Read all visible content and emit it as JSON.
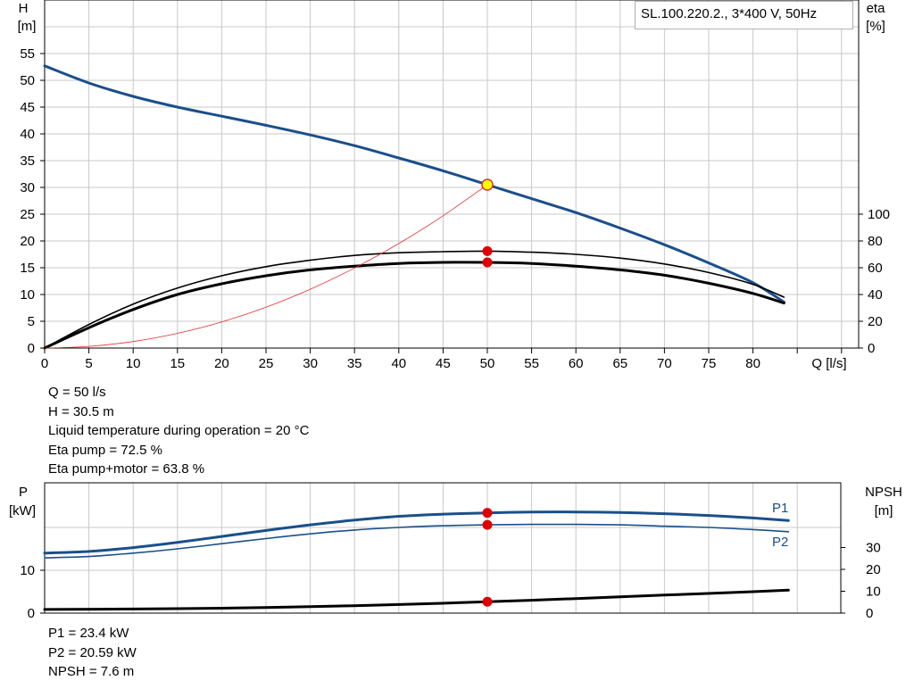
{
  "chart_data": [
    {
      "type": "line",
      "legend": "SL.100.220.2., 3*400 V, 50Hz",
      "xlabel": "Q [l/s]",
      "ylabel_top": "H",
      "ylabel_unit": "[m]",
      "y2label_top": "eta",
      "y2label_unit": "[%]",
      "xlim": [
        0,
        90
      ],
      "ylim": [
        0,
        55
      ],
      "y2lim": [
        0,
        100
      ],
      "grid": true,
      "xticks": [
        "0",
        "5",
        "10",
        "15",
        "20",
        "25",
        "30",
        "35",
        "40",
        "45",
        "50",
        "55",
        "60",
        "65",
        "70",
        "75",
        "80"
      ],
      "yticks": [
        "0",
        "5",
        "10",
        "15",
        "20",
        "25",
        "30",
        "35",
        "40",
        "45",
        "50",
        "55"
      ],
      "y2ticks": [
        "0",
        "20",
        "40",
        "60",
        "80",
        "100"
      ],
      "series": [
        {
          "role": "head",
          "color": "#1a4f8a",
          "axis": "left",
          "points": [
            [
              0,
              52.7
            ],
            [
              5,
              49.5
            ],
            [
              10,
              47
            ],
            [
              15,
              45
            ],
            [
              20,
              43.3
            ],
            [
              25,
              41.6
            ],
            [
              30,
              39.8
            ],
            [
              35,
              37.8
            ],
            [
              40,
              35.5
            ],
            [
              45,
              33.1
            ],
            [
              50,
              30.5
            ],
            [
              55,
              27.9
            ],
            [
              60,
              25.3
            ],
            [
              65,
              22.4
            ],
            [
              70,
              19.3
            ],
            [
              75,
              15.9
            ],
            [
              80,
              12.2
            ],
            [
              83.5,
              8.6
            ]
          ]
        },
        {
          "role": "eta_pump",
          "color": "#000000",
          "axis": "left",
          "points": [
            [
              0,
              0
            ],
            [
              5,
              4.4
            ],
            [
              10,
              8.2
            ],
            [
              15,
              11.2
            ],
            [
              20,
              13.5
            ],
            [
              25,
              15.2
            ],
            [
              30,
              16.4
            ],
            [
              35,
              17.3
            ],
            [
              40,
              17.8
            ],
            [
              45,
              18.0
            ],
            [
              50,
              18.1
            ],
            [
              55,
              17.9
            ],
            [
              60,
              17.5
            ],
            [
              65,
              16.8
            ],
            [
              70,
              15.7
            ],
            [
              75,
              14.1
            ],
            [
              80,
              11.9
            ],
            [
              83.5,
              9.5
            ]
          ]
        },
        {
          "role": "eta_pump_motor",
          "color": "#000000",
          "axis": "left",
          "points": [
            [
              0,
              0
            ],
            [
              5,
              3.8
            ],
            [
              10,
              7.2
            ],
            [
              15,
              10.0
            ],
            [
              20,
              12.0
            ],
            [
              25,
              13.5
            ],
            [
              30,
              14.6
            ],
            [
              35,
              15.3
            ],
            [
              40,
              15.8
            ],
            [
              45,
              16.0
            ],
            [
              50,
              16.0
            ],
            [
              55,
              15.8
            ],
            [
              60,
              15.3
            ],
            [
              65,
              14.6
            ],
            [
              70,
              13.6
            ],
            [
              75,
              12.1
            ],
            [
              80,
              10.2
            ],
            [
              83.5,
              8.4
            ]
          ]
        },
        {
          "role": "system_curve",
          "color": "#e03030",
          "axis": "left",
          "points": [
            [
              0,
              0
            ],
            [
              5,
              0.31
            ],
            [
              10,
              1.22
            ],
            [
              15,
              2.75
            ],
            [
              20,
              4.88
            ],
            [
              25,
              7.63
            ],
            [
              30,
              10.98
            ],
            [
              35,
              14.95
            ],
            [
              40,
              19.52
            ],
            [
              45,
              24.7
            ],
            [
              50,
              30.5
            ]
          ]
        }
      ],
      "markers": [
        {
          "role": "duty-point",
          "x": 50,
          "y": 30.5,
          "fill": "#ffff00",
          "stroke": "#e03030"
        },
        {
          "role": "eta-pump-point",
          "x": 50,
          "y": 18.1,
          "fill": "#e00000"
        },
        {
          "role": "eta-total-point",
          "x": 50,
          "y": 16.0,
          "fill": "#e00000"
        }
      ]
    },
    {
      "type": "line",
      "ylabel_top": "P",
      "ylabel_unit": "[kW]",
      "y2label_top": "NPSH",
      "y2label_unit": "[m]",
      "xlim": [
        0,
        90
      ],
      "ylim": [
        0,
        29
      ],
      "y2lim": [
        0,
        42
      ],
      "grid": true,
      "yticks": [
        "0",
        "10"
      ],
      "y2ticks": [
        "0",
        "10",
        "20",
        "30"
      ],
      "series": [
        {
          "name": "P1",
          "color": "#1a4f8a",
          "axis": "left",
          "points": [
            [
              0,
              14.0
            ],
            [
              5,
              14.4
            ],
            [
              10,
              15.3
            ],
            [
              15,
              16.5
            ],
            [
              20,
              17.9
            ],
            [
              25,
              19.3
            ],
            [
              30,
              20.6
            ],
            [
              35,
              21.7
            ],
            [
              40,
              22.6
            ],
            [
              45,
              23.1
            ],
            [
              50,
              23.4
            ],
            [
              55,
              23.6
            ],
            [
              60,
              23.6
            ],
            [
              65,
              23.5
            ],
            [
              70,
              23.2
            ],
            [
              75,
              22.8
            ],
            [
              80,
              22.2
            ],
            [
              84,
              21.6
            ]
          ]
        },
        {
          "name": "P2",
          "color": "#1a4f8a",
          "axis": "left",
          "points": [
            [
              0,
              12.9
            ],
            [
              5,
              13.2
            ],
            [
              10,
              14.0
            ],
            [
              15,
              15.0
            ],
            [
              20,
              16.2
            ],
            [
              25,
              17.4
            ],
            [
              30,
              18.5
            ],
            [
              35,
              19.4
            ],
            [
              40,
              20.0
            ],
            [
              45,
              20.4
            ],
            [
              50,
              20.6
            ],
            [
              55,
              20.7
            ],
            [
              60,
              20.7
            ],
            [
              65,
              20.6
            ],
            [
              70,
              20.3
            ],
            [
              75,
              20.0
            ],
            [
              80,
              19.5
            ],
            [
              84,
              19.0
            ]
          ]
        },
        {
          "role": "npsh",
          "color": "#000000",
          "axis": "left",
          "points": [
            [
              0,
              0.85
            ],
            [
              10,
              0.95
            ],
            [
              20,
              1.15
            ],
            [
              30,
              1.5
            ],
            [
              40,
              2.0
            ],
            [
              50,
              2.65
            ],
            [
              60,
              3.4
            ],
            [
              70,
              4.2
            ],
            [
              80,
              5.0
            ],
            [
              84,
              5.35
            ]
          ]
        }
      ],
      "markers": [
        {
          "role": "p1-point",
          "x": 50,
          "y": 23.4,
          "fill": "#e00000"
        },
        {
          "role": "p2-point",
          "x": 50,
          "y": 20.6,
          "fill": "#e00000"
        },
        {
          "role": "npsh-point",
          "x": 50,
          "y": 2.65,
          "fill": "#e00000"
        }
      ]
    }
  ],
  "info_top": [
    "Q = 50 l/s",
    "H = 30.5 m",
    "Liquid temperature during operation = 20 °C",
    "Eta pump = 72.5 %",
    "Eta pump+motor = 63.8 %"
  ],
  "info_bottom": [
    "P1 = 23.4 kW",
    "P2 = 20.59 kW",
    "NPSH = 7.6 m"
  ]
}
